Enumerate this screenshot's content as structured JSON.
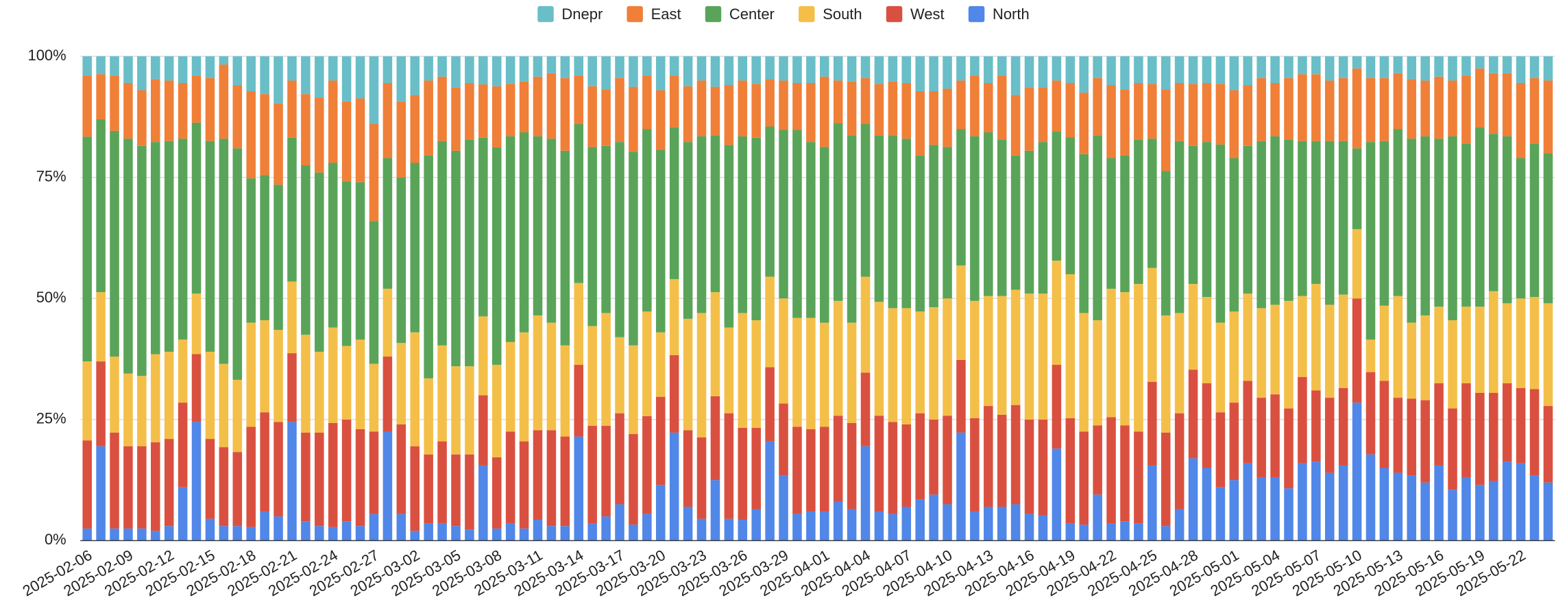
{
  "chart_data": {
    "type": "stacked_bar_percent",
    "categories": [
      "2025-02-06",
      null,
      null,
      "2025-02-09",
      null,
      null,
      "2025-02-12",
      null,
      null,
      "2025-02-15",
      null,
      null,
      "2025-02-18",
      null,
      null,
      "2025-02-21",
      null,
      null,
      "2025-02-24",
      null,
      null,
      "2025-02-27",
      null,
      null,
      "2025-03-02",
      null,
      null,
      "2025-03-05",
      null,
      null,
      "2025-03-08",
      null,
      null,
      "2025-03-11",
      null,
      null,
      "2025-03-14",
      null,
      null,
      "2025-03-17",
      null,
      null,
      "2025-03-20",
      null,
      null,
      "2025-03-23",
      null,
      null,
      "2025-03-26",
      null,
      null,
      "2025-03-29",
      null,
      null,
      "2025-04-01",
      null,
      null,
      "2025-04-04",
      null,
      null,
      "2025-04-07",
      null,
      null,
      "2025-04-10",
      null,
      null,
      "2025-04-13",
      null,
      null,
      "2025-04-16",
      null,
      null,
      "2025-04-19",
      null,
      null,
      "2025-04-22",
      null,
      null,
      "2025-04-25",
      null,
      null,
      "2025-04-28",
      null,
      null,
      "2025-05-01",
      null,
      null,
      "2025-05-04",
      null,
      null,
      "2025-05-07",
      null,
      null,
      "2025-05-10",
      null,
      null,
      "2025-05-13",
      null,
      null,
      "2025-05-16",
      null,
      null,
      "2025-05-19",
      null,
      null,
      "2025-05-22",
      null,
      null
    ],
    "series": [
      {
        "name": "Dnepr",
        "color": "#69bec8",
        "values": [
          4,
          3.7,
          4,
          5.5,
          7,
          4.7,
          5,
          5.5,
          4,
          4.5,
          1.7,
          6,
          7.2,
          7.8,
          9.7,
          5,
          7.8,
          8.5,
          5,
          9.3,
          8.7,
          14,
          5.5,
          9.3,
          8,
          5,
          4.2,
          6.5,
          5.5,
          5.8,
          6.2,
          5.7,
          5.2,
          4.2,
          3.5,
          4.5,
          4,
          6.2,
          6.8,
          4.5,
          6.3,
          4,
          7,
          4,
          6.2,
          5,
          6.3,
          6,
          5,
          5.7,
          4.8,
          5,
          5.5,
          5.5,
          4.2,
          5,
          5.2,
          4.5,
          5.7,
          5.2,
          5.5,
          7.2,
          7.2,
          6.7,
          5,
          4,
          5.5,
          4,
          8,
          6.5,
          6.5,
          5,
          5.5,
          7.5,
          4.5,
          6,
          6.8,
          5.5,
          5.7,
          6.8,
          5.5,
          5.7,
          5.5,
          5.7,
          7,
          6,
          4.5,
          5.5,
          4.5,
          3.7,
          3.7,
          5,
          4.5,
          2.5,
          4.5,
          4.5,
          3.5,
          4.7,
          5,
          4.2,
          5,
          4,
          2.5,
          3.5,
          3.5,
          5.5,
          4.5,
          5
        ]
      },
      {
        "name": "East",
        "color": "#f07f38",
        "values": [
          12.6,
          9.3,
          11.4,
          11.5,
          11.5,
          13,
          12.5,
          11.5,
          9.7,
          13,
          15.3,
          13,
          18,
          16.7,
          16.8,
          11.8,
          14.7,
          15.5,
          17,
          16.5,
          17.3,
          20,
          15.5,
          15.7,
          14,
          15.5,
          13.3,
          13,
          11.7,
          11,
          12.6,
          10.8,
          10.5,
          12.3,
          13.5,
          15,
          10,
          12.5,
          11.7,
          13.2,
          13.4,
          11,
          12.3,
          10.7,
          11.5,
          11.5,
          10,
          12.3,
          11.5,
          11.1,
          9.7,
          10.2,
          9.7,
          12.2,
          14.5,
          8.8,
          11.1,
          9.5,
          10.6,
          11.1,
          11.5,
          13.3,
          11.1,
          12,
          10,
          12.5,
          10.2,
          13.2,
          12.5,
          13,
          11.2,
          10.5,
          11.2,
          12.7,
          11.8,
          15,
          13.7,
          11.7,
          11.3,
          16.9,
          12,
          12.8,
          12.2,
          12.5,
          14,
          12.5,
          13,
          11,
          12.7,
          13.8,
          13.8,
          12.5,
          13,
          16.5,
          13.2,
          13,
          11.5,
          12.3,
          11.5,
          12.8,
          11.5,
          14,
          12.2,
          12.5,
          13,
          15.5,
          13.5,
          15
        ]
      },
      {
        "name": "Center",
        "color": "#5aa45a",
        "values": [
          46.4,
          35.7,
          46.6,
          48.5,
          47.5,
          43.8,
          43.5,
          41.5,
          35.3,
          43.5,
          46.5,
          47.8,
          29.8,
          30,
          30,
          29.7,
          35,
          37,
          34,
          34,
          32.5,
          29.5,
          27,
          34.2,
          35,
          46,
          42.2,
          44.5,
          46.8,
          36.9,
          44.9,
          42.5,
          41.3,
          37,
          38,
          40.2,
          32.8,
          37,
          34.5,
          40.3,
          40,
          37.7,
          37.7,
          31.3,
          36.5,
          36.5,
          32.4,
          37.7,
          36.5,
          37.7,
          31,
          34.8,
          38.8,
          36.3,
          36.3,
          36.7,
          38.7,
          31.5,
          34.4,
          35.7,
          35,
          32.2,
          33.5,
          31.3,
          28.2,
          34,
          33.8,
          32.3,
          27.7,
          29.5,
          31.3,
          26.7,
          28.3,
          32.8,
          38.2,
          27,
          28.2,
          29.8,
          26.7,
          29.8,
          35.5,
          28.5,
          32,
          36.8,
          31.7,
          30.5,
          34.5,
          34.8,
          33.3,
          32,
          29.5,
          33.8,
          31.7,
          16.7,
          40.8,
          34,
          34.5,
          38,
          37,
          34.7,
          38,
          33.7,
          37,
          32.5,
          34.5,
          29,
          31.7,
          31
        ]
      },
      {
        "name": "South",
        "color": "#f4bf49",
        "values": [
          16.3,
          14.3,
          15.7,
          15,
          14.5,
          18.2,
          18,
          13,
          12.5,
          18,
          17.2,
          14.9,
          21.5,
          19,
          19,
          14.8,
          20.2,
          16.7,
          19.7,
          15.2,
          18.5,
          14,
          14,
          16.8,
          23.5,
          15.7,
          19.8,
          18.2,
          18.2,
          16.3,
          19.1,
          18.5,
          22.5,
          23.7,
          22.2,
          18.8,
          16.9,
          20.6,
          23.3,
          15.7,
          18.3,
          21.6,
          13.3,
          15.7,
          23,
          25.7,
          21.5,
          17.7,
          23.7,
          22.2,
          18.7,
          21.7,
          22.5,
          23,
          21.5,
          23.7,
          20.7,
          19.8,
          23.5,
          23.5,
          24,
          21,
          23.2,
          24.2,
          19.5,
          24.2,
          22.7,
          24.5,
          23.8,
          26,
          26,
          21.5,
          29.7,
          24.5,
          21.7,
          26.5,
          27.5,
          30.5,
          23.5,
          24.2,
          20.7,
          17.7,
          17.8,
          18.5,
          18.8,
          18,
          18.5,
          18.5,
          22.2,
          16.7,
          22,
          19.2,
          19.3,
          14.3,
          6.7,
          15.5,
          21,
          15.7,
          17.5,
          15.8,
          18.2,
          15.8,
          17.8,
          21,
          16.5,
          18.5,
          19,
          21.2
        ]
      },
      {
        "name": "West",
        "color": "#da5040",
        "values": [
          18.2,
          17.5,
          19.8,
          17,
          17,
          18.3,
          18,
          17.5,
          14,
          16.5,
          16.3,
          15.3,
          20.7,
          20.5,
          19.5,
          14.2,
          18.3,
          19.3,
          21.5,
          21,
          20,
          17,
          15.5,
          18.5,
          17.5,
          14.3,
          17,
          14.8,
          15.5,
          14.5,
          14.7,
          19,
          18,
          18.5,
          19.8,
          18.5,
          14.8,
          20.2,
          18.7,
          18.8,
          18.7,
          20.2,
          18.2,
          16,
          15.8,
          16.8,
          17.3,
          21.8,
          19,
          16.8,
          15.3,
          14.8,
          18,
          17,
          17.5,
          17.8,
          17.8,
          15.2,
          19.8,
          19,
          17,
          17.8,
          15.5,
          18.3,
          15,
          19.3,
          20.8,
          19,
          20.5,
          19.5,
          19.7,
          17.3,
          21.8,
          19.2,
          14.3,
          22,
          19.8,
          19,
          17.3,
          19.3,
          19.8,
          18.3,
          17.5,
          15.5,
          16,
          17,
          16.5,
          17.2,
          16.5,
          17.8,
          14.7,
          15.5,
          16,
          21.5,
          17,
          18,
          15.5,
          15.8,
          17,
          17,
          16.8,
          19.5,
          19,
          18.2,
          16.2,
          15.5,
          17.8,
          15.8
        ]
      },
      {
        "name": "North",
        "color": "#5087e8",
        "values": [
          2.5,
          19.5,
          2.5,
          2.5,
          2.5,
          2,
          3,
          11,
          24.5,
          4.5,
          3,
          3,
          2.8,
          6,
          5,
          24.5,
          4,
          3,
          2.8,
          4,
          3,
          5.5,
          22.5,
          5.5,
          2,
          3.5,
          3.5,
          3,
          2.3,
          15.5,
          2.5,
          3.5,
          2.5,
          4.3,
          3,
          3,
          21.5,
          3.5,
          5,
          7.5,
          3.3,
          5.5,
          11.5,
          22.3,
          7,
          4.5,
          12.5,
          4.5,
          4.3,
          6.5,
          20.5,
          13.5,
          5.5,
          6,
          6,
          8,
          6.5,
          19.5,
          6,
          5.5,
          7,
          8.5,
          9.5,
          7.5,
          22.3,
          6,
          7,
          7,
          7.5,
          5.5,
          5.3,
          19,
          3.5,
          3.3,
          9.5,
          3.5,
          4,
          3.5,
          15.5,
          3,
          6.5,
          17,
          15,
          11,
          12.5,
          16,
          13,
          13,
          10.8,
          16,
          16.3,
          14,
          15.5,
          28.5,
          17.8,
          15,
          14,
          13.5,
          12,
          15.5,
          10.5,
          13,
          11.5,
          12.3,
          16.3,
          16,
          13.5,
          12
        ]
      }
    ],
    "ylim": [
      0,
      100
    ],
    "yticks": [
      {
        "value": 0,
        "label": "0%"
      },
      {
        "value": 25,
        "label": "25%"
      },
      {
        "value": 50,
        "label": "50%"
      },
      {
        "value": 75,
        "label": "75%"
      },
      {
        "value": 100,
        "label": "100%"
      }
    ],
    "grid": true,
    "legend": "top"
  }
}
